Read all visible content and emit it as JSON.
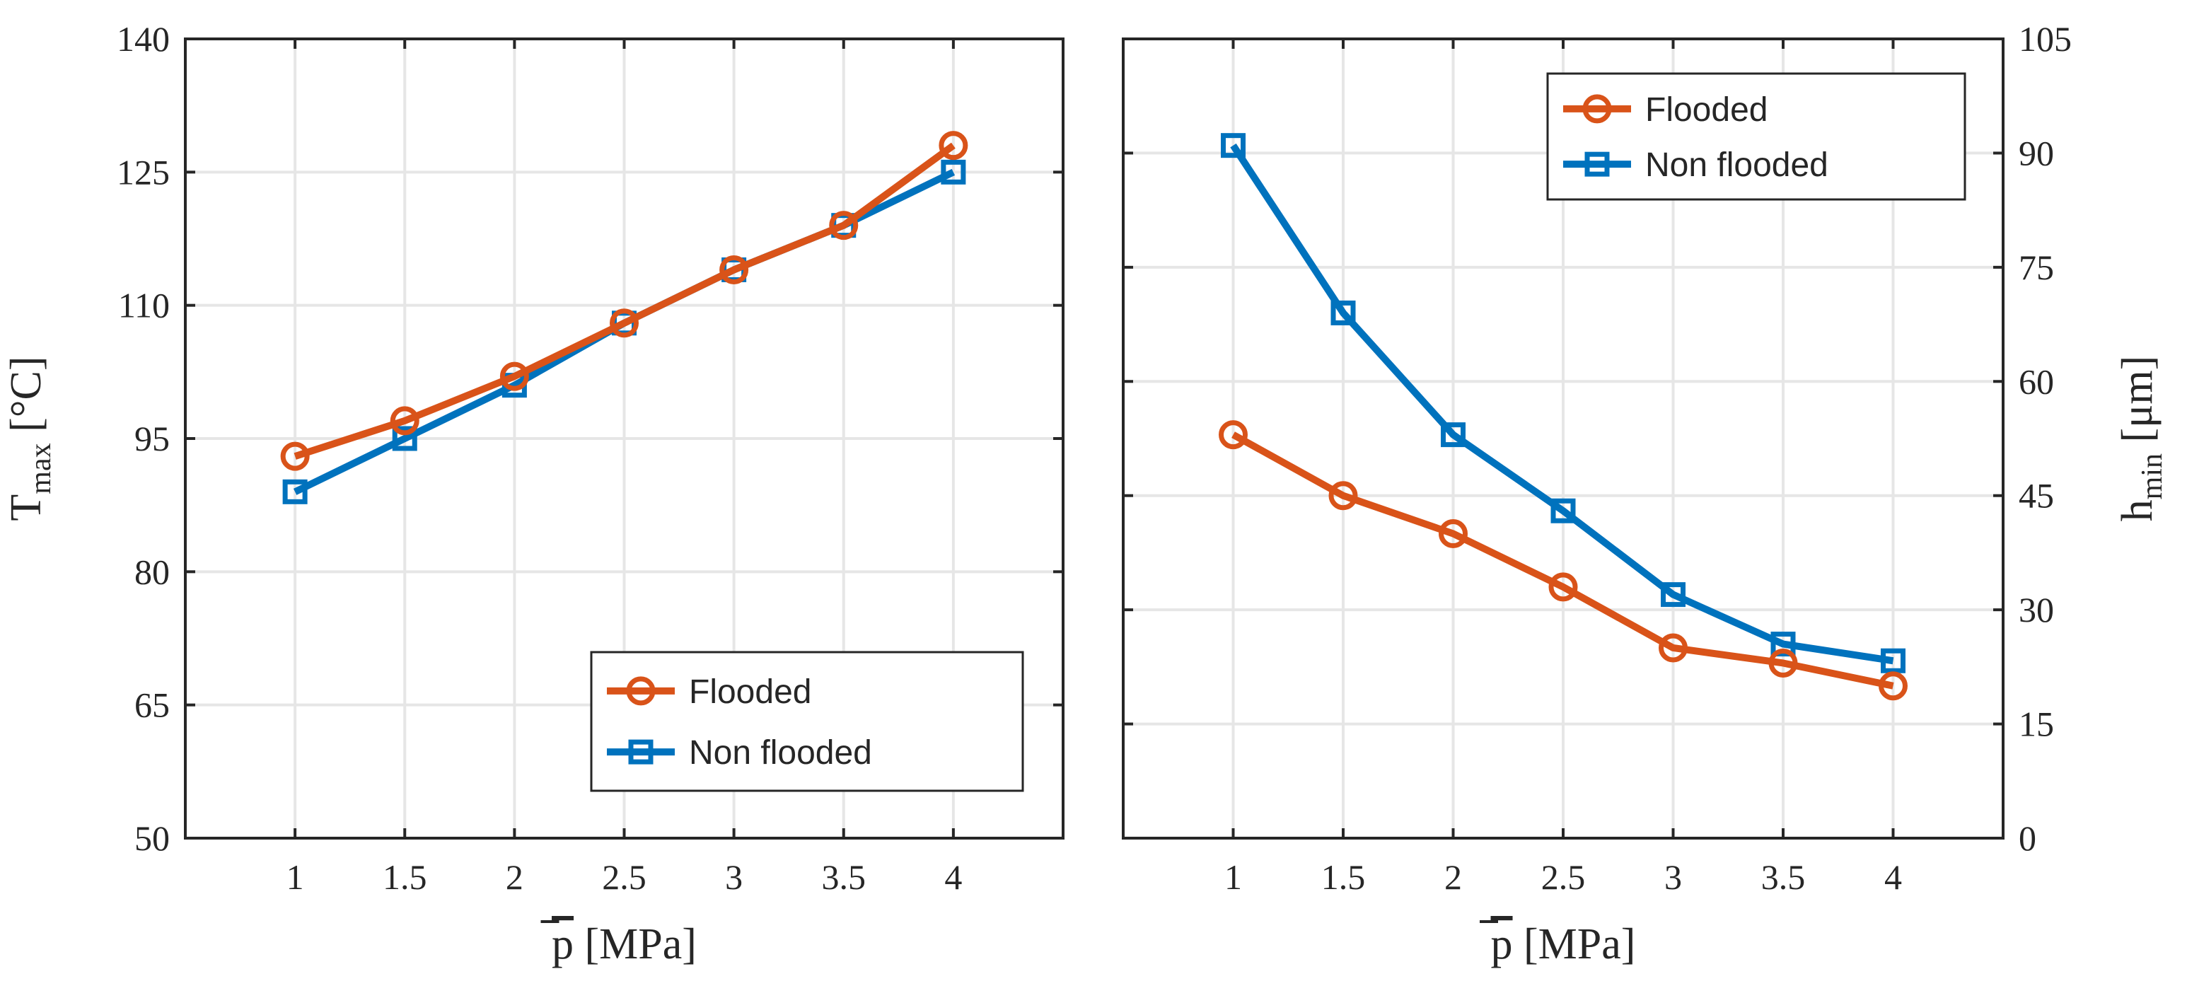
{
  "colors": {
    "flooded": "#d95319",
    "nonflooded": "#0072bd"
  },
  "chart_data": [
    {
      "type": "line",
      "x": [
        1,
        1.5,
        2,
        2.5,
        3,
        3.5,
        4
      ],
      "xticks": [
        "1",
        "1.5",
        "2",
        "2.5",
        "3",
        "3.5",
        "4"
      ],
      "xlim": [
        0.5,
        4.5
      ],
      "ylim": [
        50,
        140
      ],
      "yticks": [
        "50",
        "65",
        "80",
        "95",
        "110",
        "125",
        "140"
      ],
      "ytick_values": [
        50,
        65,
        80,
        95,
        110,
        125,
        140
      ],
      "xlabel_base": "p",
      "xlabel_unit": "[MPa]",
      "ylabel_base": "T",
      "ylabel_sub": "max",
      "ylabel_unit": "[°C]",
      "yaxis_side": "left",
      "grid": true,
      "legend_position": "bottom-right",
      "series": [
        {
          "name": "Flooded",
          "marker": "circle",
          "values": [
            93,
            97,
            102,
            108,
            114,
            119,
            128
          ]
        },
        {
          "name": "Non flooded",
          "marker": "square",
          "values": [
            89,
            95,
            101,
            108,
            114,
            119,
            125
          ]
        }
      ]
    },
    {
      "type": "line",
      "x": [
        1,
        1.5,
        2,
        2.5,
        3,
        3.5,
        4
      ],
      "xticks": [
        "1",
        "1.5",
        "2",
        "2.5",
        "3",
        "3.5",
        "4"
      ],
      "xlim": [
        0.5,
        4.5
      ],
      "ylim": [
        0,
        105
      ],
      "yticks": [
        "0",
        "15",
        "30",
        "45",
        "60",
        "75",
        "90",
        "105"
      ],
      "ytick_values": [
        0,
        15,
        30,
        45,
        60,
        75,
        90,
        105
      ],
      "xlabel_base": "p",
      "xlabel_unit": "[MPa]",
      "ylabel_base": "h",
      "ylabel_sub": "min",
      "ylabel_unit": "[μm]",
      "yaxis_side": "right",
      "grid": true,
      "legend_position": "top-right",
      "series": [
        {
          "name": "Flooded",
          "marker": "circle",
          "values": [
            53,
            45,
            40,
            33,
            25,
            23,
            20
          ]
        },
        {
          "name": "Non flooded",
          "marker": "square",
          "values": [
            91,
            69,
            53,
            43,
            32,
            25.5,
            23.3
          ]
        }
      ]
    }
  ]
}
